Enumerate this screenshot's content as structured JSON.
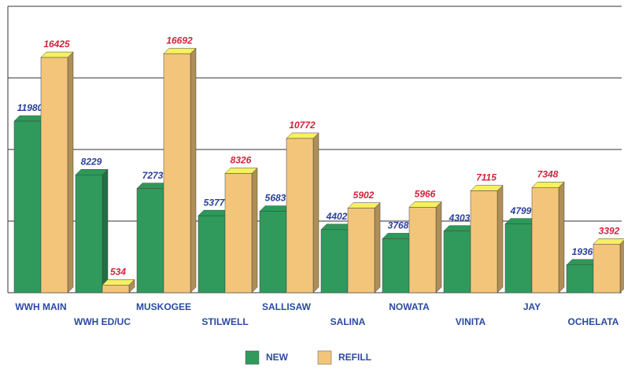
{
  "chart_data": {
    "type": "bar3d",
    "categories": [
      "WWH MAIN",
      "WWH ED/UC",
      "MUSKOGEE",
      "STILWELL",
      "SALLISAW",
      "SALINA",
      "NOWATA",
      "VINITA",
      "JAY",
      "OCHELATA"
    ],
    "series": [
      {
        "name": "NEW",
        "color": "#2f9a5c",
        "values": [
          11980,
          8229,
          7273,
          5377,
          5683,
          4402,
          3768,
          4303,
          4799,
          1936
        ]
      },
      {
        "name": "REFILL",
        "color": "#f3c57a",
        "values": [
          16425,
          534,
          16692,
          8326,
          10772,
          5902,
          5966,
          7115,
          7348,
          3392
        ]
      }
    ],
    "ylim": [
      0,
      20000
    ],
    "yticks": [
      0,
      5000,
      10000,
      15000,
      20000
    ],
    "grid": true
  }
}
